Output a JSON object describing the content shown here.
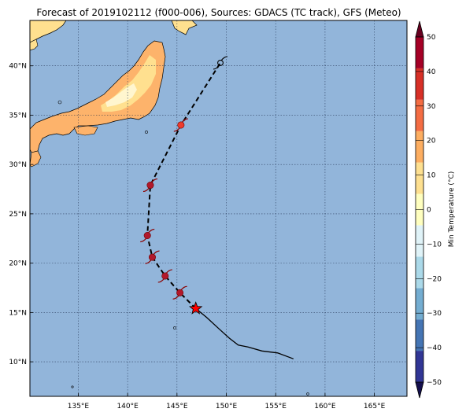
{
  "title": "Forecast of 2019102112 (f000-006), Sources: GDACS (TC track), GFS (Meteo)",
  "map": {
    "lon_range": [
      130.1,
      168.3
    ],
    "lat_range": [
      6.5,
      44.6
    ],
    "lon_ticks": [
      {
        "value": 135,
        "label": "135°E"
      },
      {
        "value": 140,
        "label": "140°E"
      },
      {
        "value": 145,
        "label": "145°E"
      },
      {
        "value": 150,
        "label": "150°E"
      },
      {
        "value": 155,
        "label": "155°E"
      },
      {
        "value": 160,
        "label": "160°E"
      },
      {
        "value": 165,
        "label": "165°E"
      }
    ],
    "lat_ticks": [
      {
        "value": 10,
        "label": "10°N"
      },
      {
        "value": 15,
        "label": "15°N"
      },
      {
        "value": 20,
        "label": "20°N"
      },
      {
        "value": 25,
        "label": "25°N"
      },
      {
        "value": 30,
        "label": "30°N"
      },
      {
        "value": 35,
        "label": "35°N"
      },
      {
        "value": 40,
        "label": "40°N"
      }
    ],
    "ocean_color": "#92b5da",
    "land_warm_color": "#fdb36b",
    "land_cool_color": "#ffe08f",
    "land_pale_color": "#fff6cf",
    "grid": "dotted"
  },
  "track": {
    "past": [
      [
        156.8,
        10.3
      ],
      [
        155.2,
        10.9
      ],
      [
        153.6,
        11.1
      ],
      [
        152.2,
        11.5
      ],
      [
        151.2,
        11.7
      ],
      [
        150.3,
        12.4
      ],
      [
        149.3,
        13.3
      ],
      [
        148.0,
        14.5
      ],
      [
        146.9,
        15.4
      ]
    ],
    "forecast": [
      [
        146.9,
        15.4
      ],
      [
        145.3,
        17.0
      ],
      [
        143.8,
        18.7
      ],
      [
        142.5,
        20.6
      ],
      [
        142.0,
        22.8
      ],
      [
        142.3,
        27.9
      ],
      [
        145.4,
        34.0
      ],
      [
        149.4,
        40.3
      ]
    ],
    "current_position": [
      146.9,
      15.4
    ],
    "markers": [
      {
        "lon": 145.3,
        "lat": 17.0,
        "color": "#b2182b"
      },
      {
        "lon": 143.8,
        "lat": 18.7,
        "color": "#b2182b"
      },
      {
        "lon": 142.5,
        "lat": 20.6,
        "color": "#b2182b"
      },
      {
        "lon": 142.0,
        "lat": 22.8,
        "color": "#b2182b"
      },
      {
        "lon": 142.3,
        "lat": 27.9,
        "color": "#b2182b"
      },
      {
        "lon": 145.4,
        "lat": 34.0,
        "color": "#ef3b2c"
      }
    ],
    "star_color": "#ff0000"
  },
  "colorbar": {
    "label": "Min Temperature (°C)",
    "min": -50,
    "max": 50,
    "ticks": [
      {
        "value": 50,
        "label": "50"
      },
      {
        "value": 40,
        "label": "40"
      },
      {
        "value": 30,
        "label": "30"
      },
      {
        "value": 20,
        "label": "20"
      },
      {
        "value": 10,
        "label": "10"
      },
      {
        "value": 0,
        "label": "0"
      },
      {
        "value": -10,
        "label": "−10"
      },
      {
        "value": -20,
        "label": "−20"
      },
      {
        "value": -30,
        "label": "−30"
      },
      {
        "value": -40,
        "label": "−40"
      },
      {
        "value": -50,
        "label": "−50"
      }
    ],
    "colors": [
      "#313695",
      "#4575b4",
      "#74add1",
      "#abd9e9",
      "#e0f3f8",
      "#ffffbf",
      "#fee090",
      "#fdae61",
      "#f46d43",
      "#d73027",
      "#a50026"
    ],
    "under_color": "#140f4d",
    "over_color": "#67001f"
  }
}
